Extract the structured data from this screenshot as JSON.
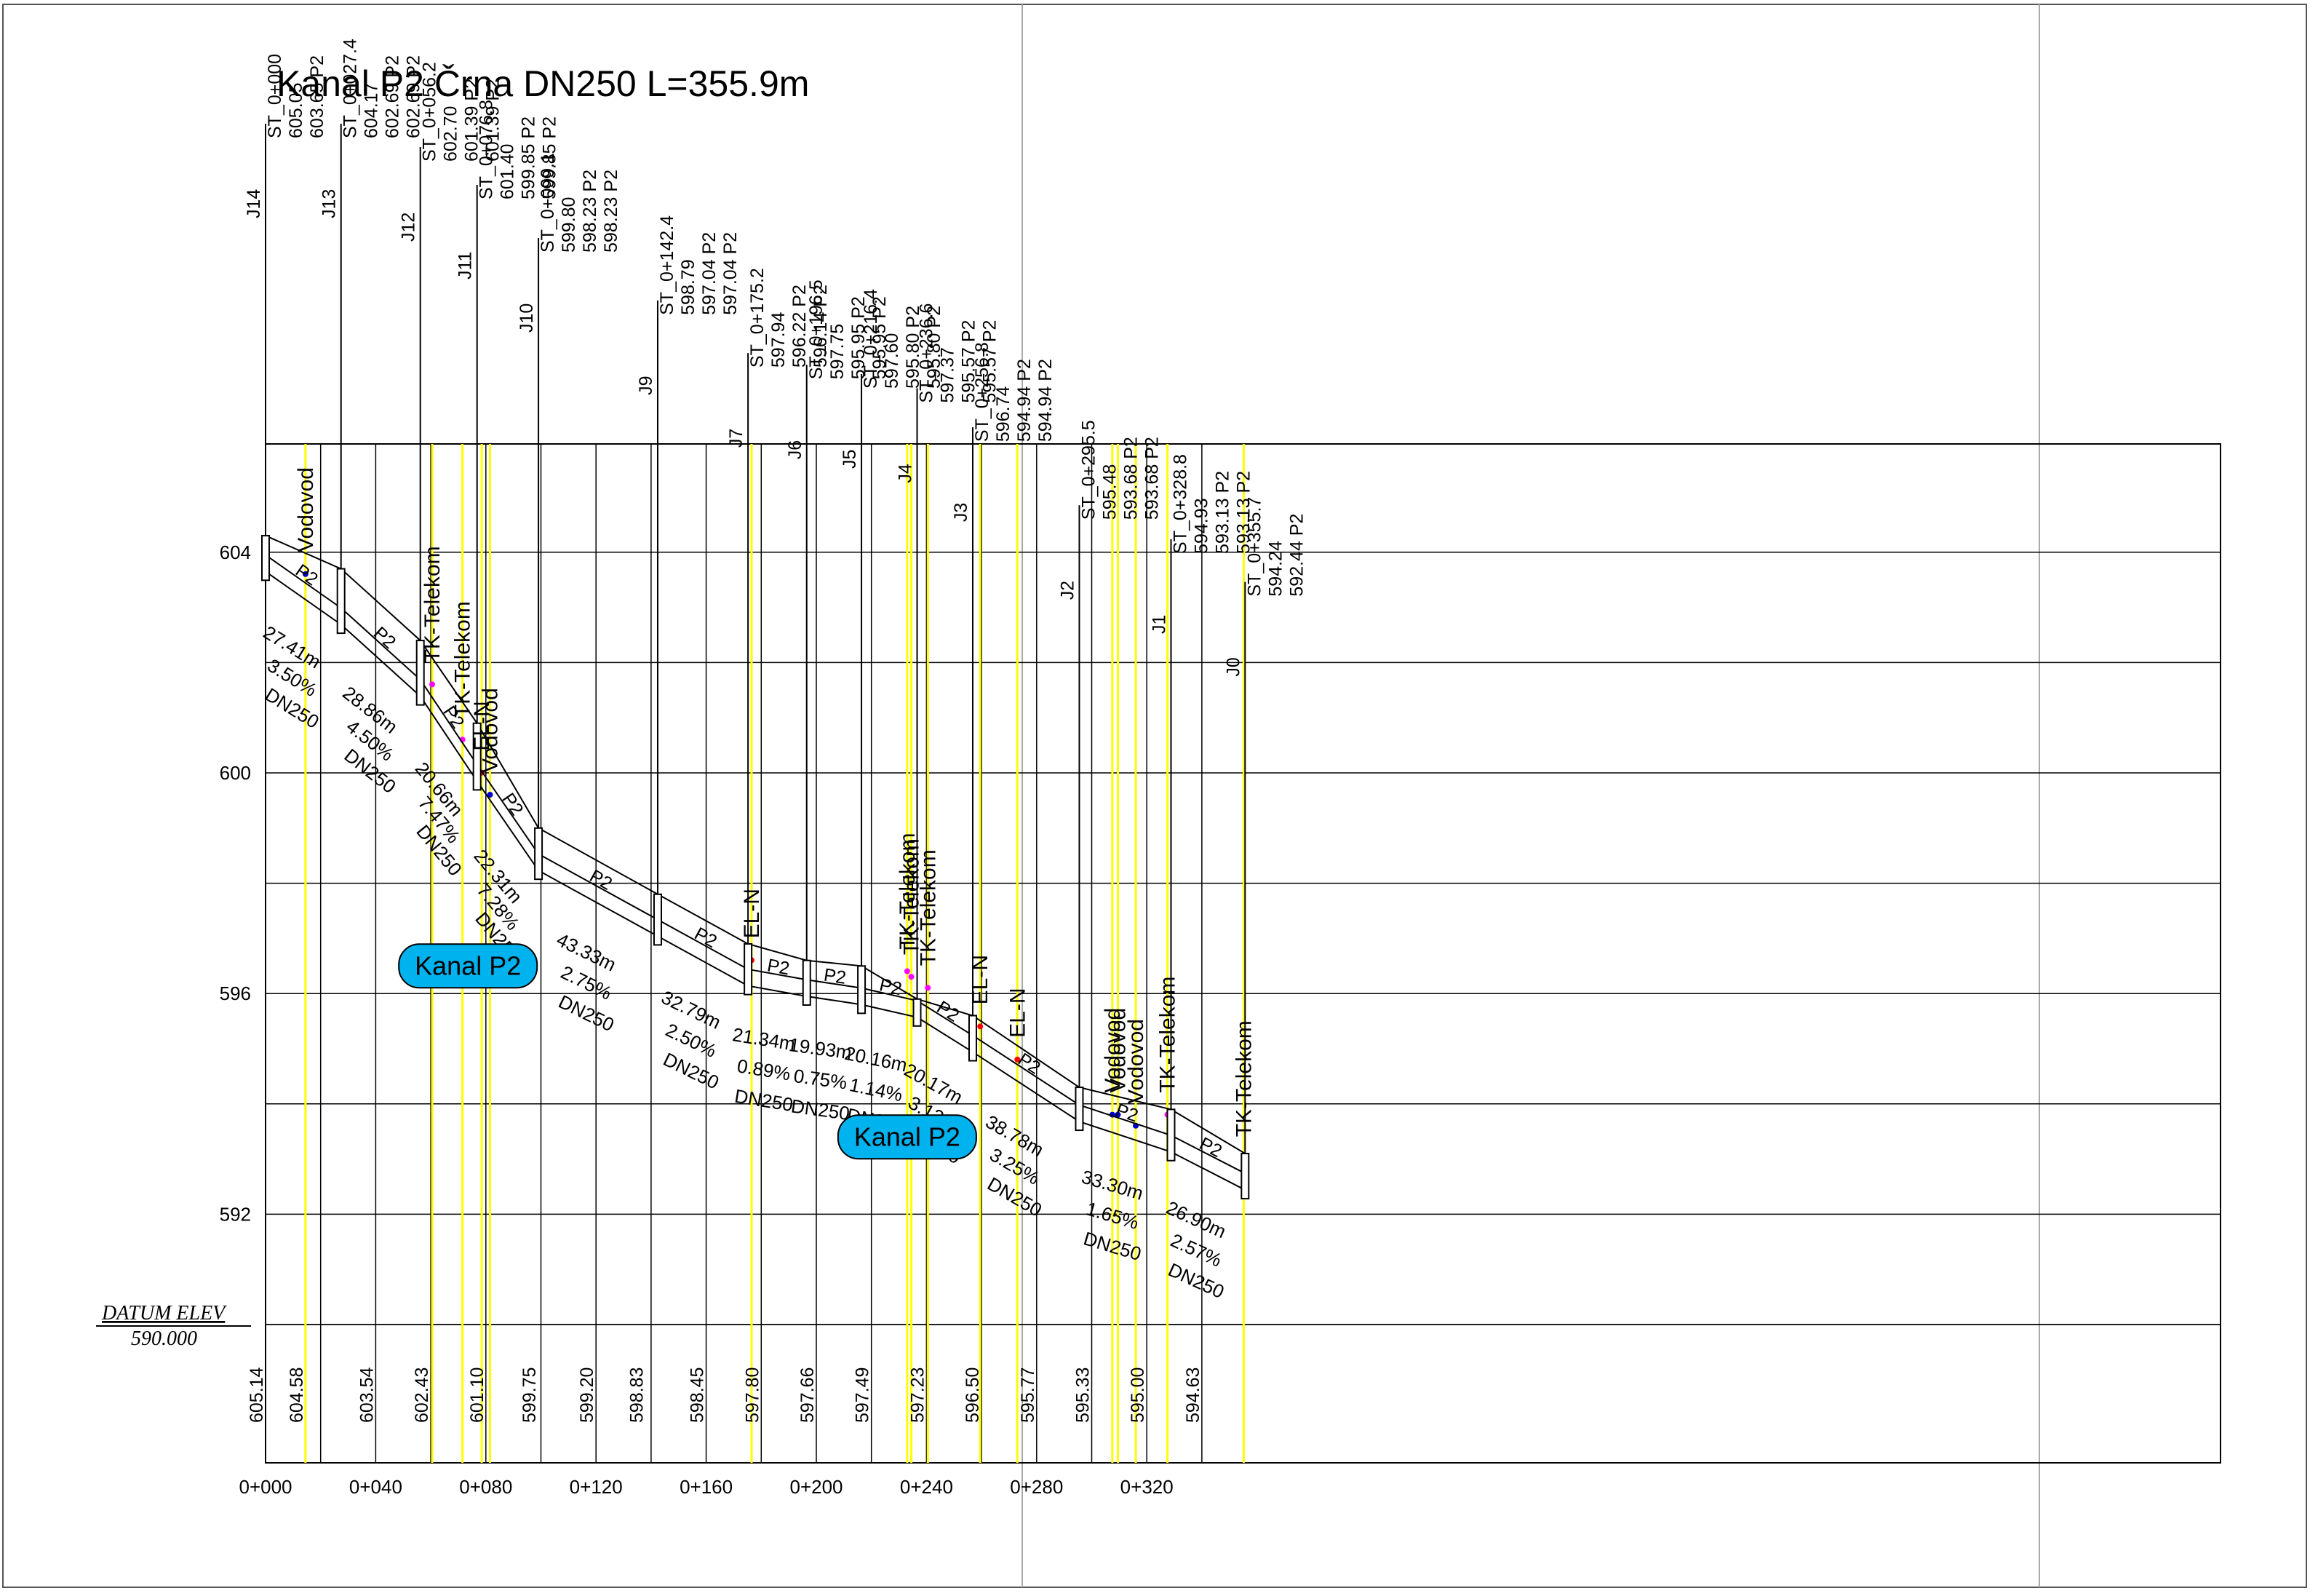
{
  "title": "Kanal P2 Črna DN250 L=355.9m",
  "datum": {
    "label": "DATUM ELEV",
    "value": "590.000"
  },
  "colors": {
    "line": "#000000",
    "yellow": "#ffff00",
    "magenta": "#ff00ff",
    "blue": "#0000cc",
    "red": "#ff0000",
    "badge": "#00b2ee"
  },
  "axes": {
    "x_ticks": [
      "0+000",
      "0+040",
      "0+080",
      "0+120",
      "0+160",
      "0+200",
      "0+240",
      "0+280",
      "0+320"
    ],
    "x_values": [
      0,
      40,
      80,
      120,
      160,
      200,
      240,
      280,
      320
    ],
    "y_ticks": [
      "604",
      "600",
      "596",
      "592"
    ],
    "y_values": [
      604,
      600,
      596,
      592
    ],
    "x_range": [
      0,
      355.9
    ],
    "y_range": [
      590,
      606
    ]
  },
  "ground_elevations": [
    {
      "s": 0,
      "v": "605.14"
    },
    {
      "s": 14.5,
      "v": "604.58"
    },
    {
      "s": 40,
      "v": "603.54"
    },
    {
      "s": 60,
      "v": "602.43"
    },
    {
      "s": 80,
      "v": "601.10"
    },
    {
      "s": 99.1,
      "v": "599.75"
    },
    {
      "s": 120,
      "v": "599.20"
    },
    {
      "s": 138,
      "v": "598.83"
    },
    {
      "s": 160,
      "v": "598.45"
    },
    {
      "s": 180,
      "v": "597.80"
    },
    {
      "s": 200,
      "v": "597.66"
    },
    {
      "s": 220,
      "v": "597.49"
    },
    {
      "s": 240,
      "v": "597.23"
    },
    {
      "s": 260,
      "v": "596.50"
    },
    {
      "s": 280,
      "v": "595.77"
    },
    {
      "s": 300,
      "v": "595.33"
    },
    {
      "s": 320,
      "v": "595.00"
    },
    {
      "s": 340,
      "v": "594.63"
    }
  ],
  "manholes": [
    {
      "id": "J14",
      "st": "ST_0+000",
      "l1": "605.05",
      "l2": "603.65 P2",
      "l3": "",
      "s": 0,
      "ground": 605.05,
      "invert": 603.65,
      "top": 604.3
    },
    {
      "id": "J13",
      "st": "ST_0+027.4",
      "l1": "604.17",
      "l2": "602.69 P2",
      "l3": "602.69 P2",
      "s": 27.4,
      "ground": 604.17,
      "invert": 602.69,
      "top": 603.7
    },
    {
      "id": "J12",
      "st": "ST_0+056.2",
      "l1": "602.70",
      "l2": "601.39 P2",
      "l3": "601.39 P2",
      "s": 56.2,
      "ground": 602.7,
      "invert": 601.39,
      "top": 602.4
    },
    {
      "id": "J11",
      "st": "ST_0+076.8",
      "l1": "601.40",
      "l2": "599.85 P2",
      "l3": "599.85 P2",
      "s": 76.8,
      "ground": 601.4,
      "invert": 599.85,
      "top": 600.9
    },
    {
      "id": "J10",
      "st": "ST_0+099.1",
      "l1": "599.80",
      "l2": "598.23 P2",
      "l3": "598.23 P2",
      "s": 99.1,
      "ground": 599.8,
      "invert": 598.23,
      "top": 599.0
    },
    {
      "id": "J9",
      "st": "ST_0+142.4",
      "l1": "598.79",
      "l2": "597.04 P2",
      "l3": "597.04 P2",
      "s": 142.4,
      "ground": 598.79,
      "invert": 597.04,
      "top": 597.8
    },
    {
      "id": "J7",
      "st": "ST_0+175.2",
      "l1": "597.94",
      "l2": "596.22 P2",
      "l3": "596.14 P2",
      "s": 175.2,
      "ground": 597.94,
      "invert": 596.14,
      "top": 596.9
    },
    {
      "id": "J6",
      "st": "ST_0+196.5",
      "l1": "597.75",
      "l2": "595.95 P2",
      "l3": "595.95 P2",
      "s": 196.5,
      "ground": 597.75,
      "invert": 595.95,
      "top": 596.6
    },
    {
      "id": "J5",
      "st": "ST_0+216.4",
      "l1": "597.60",
      "l2": "595.80 P2",
      "l3": "595.80 P2",
      "s": 216.4,
      "ground": 597.6,
      "invert": 595.8,
      "top": 596.5
    },
    {
      "id": "J4",
      "st": "ST_0+236.6",
      "l1": "597.37",
      "l2": "595.57 P2",
      "l3": "595.57 P2",
      "s": 236.6,
      "ground": 597.37,
      "invert": 595.57,
      "top": 595.9
    },
    {
      "id": "J3",
      "st": "ST_0+256.8",
      "l1": "596.74",
      "l2": "594.94 P2",
      "l3": "594.94 P2",
      "s": 256.8,
      "ground": 596.74,
      "invert": 594.94,
      "top": 595.6
    },
    {
      "id": "J2",
      "st": "ST_0+295.5",
      "l1": "595.48",
      "l2": "593.68 P2",
      "l3": "593.68 P2",
      "s": 295.5,
      "ground": 595.48,
      "invert": 593.68,
      "top": 594.3
    },
    {
      "id": "J1",
      "st": "ST_0+328.8",
      "l1": "594.93",
      "l2": "593.13 P2",
      "l3": "593.13 P2",
      "s": 328.8,
      "ground": 594.93,
      "invert": 593.13,
      "top": 593.9
    },
    {
      "id": "J0",
      "st": "ST_0+355.7",
      "l1": "594.24",
      "l2": "592.44 P2",
      "l3": "",
      "s": 355.7,
      "ground": 594.24,
      "invert": 592.44,
      "top": 593.1
    }
  ],
  "segments": [
    {
      "label": "P2",
      "len": "27.41m",
      "slope": "3.50%",
      "dn": "DN250"
    },
    {
      "label": "P2",
      "len": "28.86m",
      "slope": "4.50%",
      "dn": "DN250"
    },
    {
      "label": "P2",
      "len": "20.66m",
      "slope": "7.47%",
      "dn": "DN250"
    },
    {
      "label": "P2",
      "len": "22.31m",
      "slope": "7.28%",
      "dn": "DN250"
    },
    {
      "label": "P2",
      "len": "43.33m",
      "slope": "2.75%",
      "dn": "DN250"
    },
    {
      "label": "P2",
      "len": "32.79m",
      "slope": "2.50%",
      "dn": "DN250"
    },
    {
      "label": "P2",
      "len": "21.34m",
      "slope": "0.89%",
      "dn": "DN250"
    },
    {
      "label": "P2",
      "len": "19.93m",
      "slope": "0.75%",
      "dn": "DN250"
    },
    {
      "label": "P2",
      "len": "20.16m",
      "slope": "1.14%",
      "dn": "DN250"
    },
    {
      "label": "P2",
      "len": "20.17m",
      "slope": "3.12%",
      "dn": "DN250"
    },
    {
      "label": "P2",
      "len": "38.78m",
      "slope": "3.25%",
      "dn": "DN250"
    },
    {
      "label": "P2",
      "len": "33.30m",
      "slope": "1.65%",
      "dn": "DN250"
    },
    {
      "label": "P2",
      "len": "26.90m",
      "slope": "2.57%",
      "dn": "DN250"
    }
  ],
  "crossings": [
    {
      "s": 14.5,
      "text": "Vodovod",
      "kind": "water",
      "elev": 604.0
    },
    {
      "s": 60.5,
      "text": "TK-Telekom",
      "kind": "telecom",
      "elev": 602.0
    },
    {
      "s": 71.5,
      "text": "TK-Telekom",
      "kind": "telecom",
      "elev": 601.0
    },
    {
      "s": 78.5,
      "text": "EL-N",
      "kind": "power",
      "elev": 600.4
    },
    {
      "s": 81.5,
      "text": "Vodovod",
      "kind": "water",
      "elev": 600.0
    },
    {
      "s": 176.5,
      "text": "EL-N",
      "kind": "power",
      "elev": 597.0
    },
    {
      "s": 233.0,
      "text": "TK-Telekom",
      "kind": "telecom",
      "elev": 596.8
    },
    {
      "s": 234.5,
      "text": "TK-Telekom",
      "kind": "telecom",
      "elev": 596.7
    },
    {
      "s": 240.5,
      "text": "TK-Telekom",
      "kind": "telecom",
      "elev": 596.5
    },
    {
      "s": 259.5,
      "text": "EL-N",
      "kind": "power",
      "elev": 595.8
    },
    {
      "s": 273.0,
      "text": "EL-N",
      "kind": "power",
      "elev": 595.2
    },
    {
      "s": 307.5,
      "text": "Vodovod",
      "kind": "water",
      "elev": 594.2
    },
    {
      "s": 309.5,
      "text": "Vodovod",
      "kind": "water",
      "elev": 594.2
    },
    {
      "s": 316.0,
      "text": "Vodovod",
      "kind": "water",
      "elev": 594.0
    },
    {
      "s": 327.5,
      "text": "TK-Telekom",
      "kind": "telecom",
      "elev": 594.2
    },
    {
      "s": 355.2,
      "text": "TK-Telekom",
      "kind": "telecom",
      "elev": 593.4
    }
  ],
  "badges": [
    {
      "text": "Kanal P2",
      "s": 73.5,
      "elev": 596.5
    },
    {
      "text": "Kanal P2",
      "s": 233.0,
      "elev": 593.4
    }
  ]
}
